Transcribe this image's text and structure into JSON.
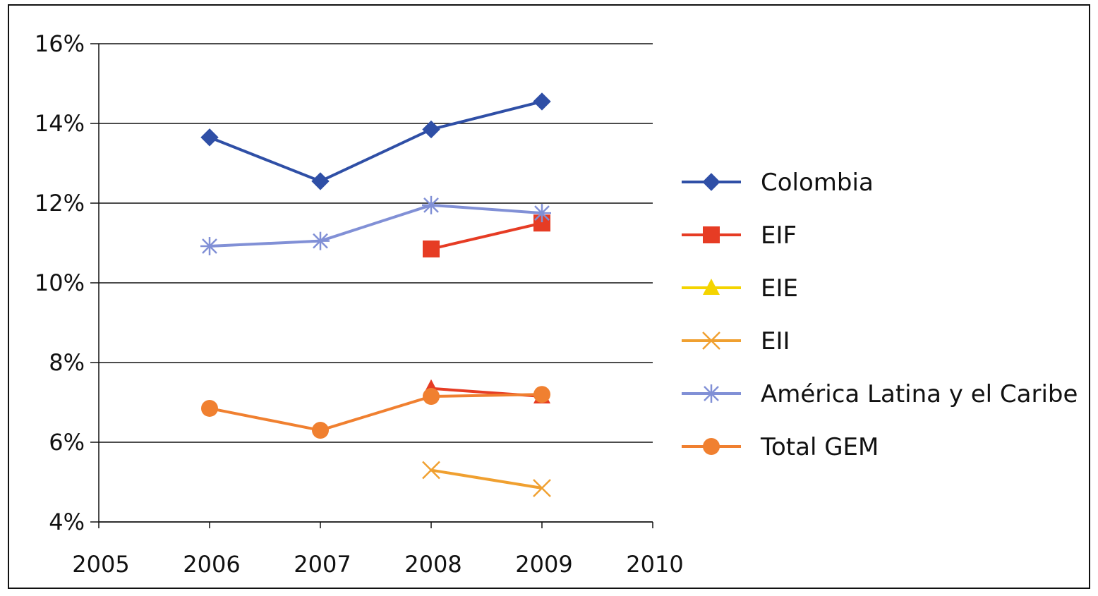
{
  "chart_data": {
    "type": "line",
    "title": "",
    "xlabel": "",
    "ylabel": "",
    "xlim": [
      2005,
      2010
    ],
    "ylim": [
      4,
      16
    ],
    "x_ticks": [
      2005,
      2006,
      2007,
      2008,
      2009,
      2010
    ],
    "x_tick_labels": [
      "2005",
      "2006",
      "2007",
      "2008",
      "2009",
      "2010"
    ],
    "y_ticks": [
      4,
      6,
      8,
      10,
      12,
      14,
      16
    ],
    "y_tick_labels": [
      "4%",
      "6%",
      "8%",
      "10%",
      "12%",
      "14%",
      "16%"
    ],
    "grid": "horizontal",
    "legend_position": "right",
    "series": [
      {
        "name": "Colombia",
        "color": "#2f4fa6",
        "marker": "diamond",
        "x": [
          2006,
          2007,
          2008,
          2009
        ],
        "values": [
          13.65,
          12.55,
          13.85,
          14.55
        ]
      },
      {
        "name": "EIF",
        "color": "#e63c24",
        "marker": "square",
        "x": [
          2008,
          2009
        ],
        "values": [
          10.85,
          11.5
        ]
      },
      {
        "name": "EIE",
        "color": "#e63c24",
        "marker": "triangle",
        "x": [
          2008,
          2009
        ],
        "values": [
          7.35,
          7.15
        ]
      },
      {
        "name": "EII",
        "color": "#f0a030",
        "marker": "x",
        "x": [
          2008,
          2009
        ],
        "values": [
          5.3,
          4.85
        ]
      },
      {
        "name": "América  Latina  y  el  Caribe",
        "color": "#8190d6",
        "marker": "asterisk",
        "x": [
          2006,
          2007,
          2008,
          2009
        ],
        "values": [
          10.92,
          11.05,
          11.95,
          11.75
        ]
      },
      {
        "name": "Total  GEM",
        "color": "#f08030",
        "marker": "circle",
        "x": [
          2006,
          2007,
          2008,
          2009
        ],
        "values": [
          6.85,
          6.3,
          7.15,
          7.2
        ]
      }
    ],
    "legend_items": [
      {
        "label": "Colombia",
        "color": "#2f4fa6",
        "marker": "diamond"
      },
      {
        "label": "EIF",
        "color": "#e63c24",
        "marker": "square"
      },
      {
        "label": "EIE",
        "color": "#f4d400",
        "marker": "triangle"
      },
      {
        "label": "EII",
        "color": "#f0a030",
        "marker": "x"
      },
      {
        "label": "América  Latina  y  el  Caribe",
        "color": "#8190d6",
        "marker": "asterisk"
      },
      {
        "label": "Total  GEM",
        "color": "#f08030",
        "marker": "circle"
      }
    ]
  }
}
